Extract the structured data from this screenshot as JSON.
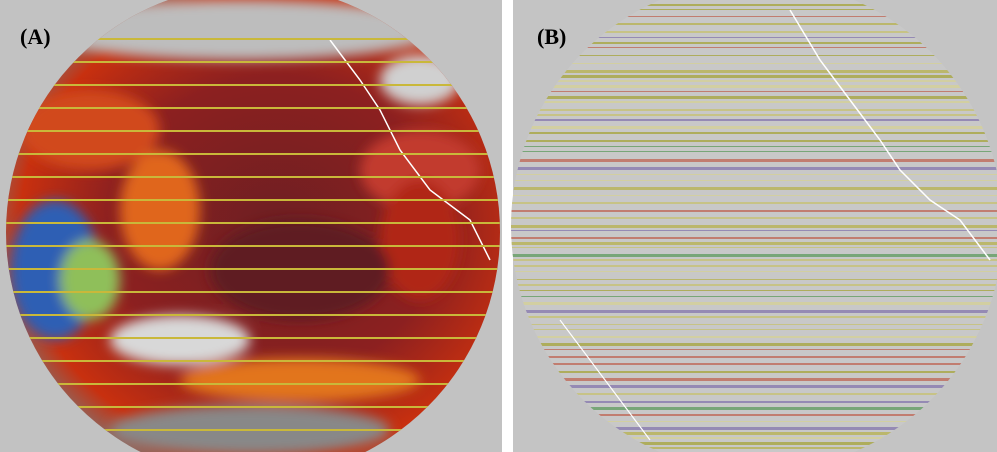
{
  "panels": [
    {
      "label": "(A)"
    },
    {
      "label": "(B)"
    }
  ]
}
